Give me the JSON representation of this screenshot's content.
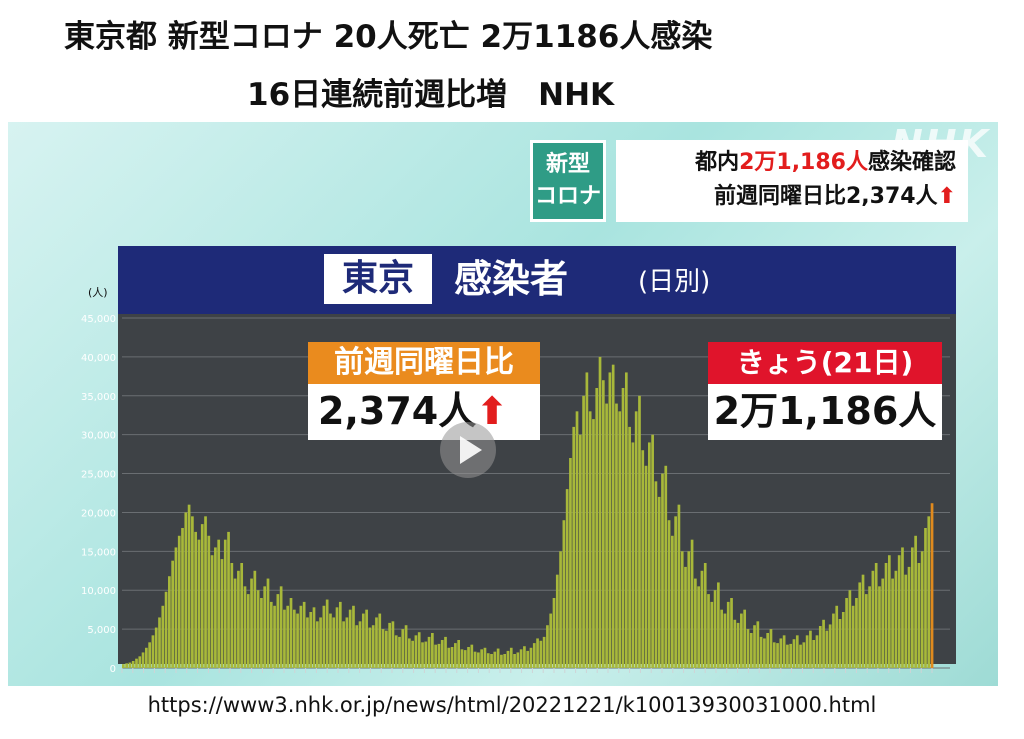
{
  "headline": {
    "line1": "東京都 新型コロナ 20人死亡 2万1186人感染",
    "line2": "16日連続前週比増　NHK"
  },
  "broadcast": {
    "watermark": "NHK",
    "tag_line1": "新型",
    "tag_line2": "コロナ",
    "summary_line1_prefix": "都内",
    "summary_line1_highlight": "2万1,186人",
    "summary_line1_suffix": "感染確認",
    "summary_line2": "前週同曜日比2,374人",
    "summary_arrow": "⬆",
    "title_box": "東京",
    "title_main": "感染者",
    "title_sub": "(日別)",
    "callout_left_header": "前週同曜日比",
    "callout_left_value": "2,374人",
    "callout_left_arrow": "⬆",
    "callout_right_header": "きょう(21日)",
    "callout_right_value": "2万1,186人"
  },
  "url": "https://www3.nhk.or.jp/news/html/20221221/k10013930031000.html",
  "chart_data": {
    "type": "bar",
    "title": "東京 感染者 (日別)",
    "ylabel": "(人)",
    "ylim": [
      0,
      45000
    ],
    "yticks": [
      "0",
      "5,000",
      "10,000",
      "15,000",
      "20,000",
      "25,000",
      "30,000",
      "35,000",
      "40,000",
      "45,000"
    ],
    "series_color": "#a8b83a",
    "highlight_color": "#e08a1e",
    "values": [
      500,
      600,
      700,
      900,
      1200,
      1500,
      2000,
      2600,
      3300,
      4200,
      5200,
      6500,
      8000,
      9800,
      11800,
      13800,
      15500,
      17000,
      18000,
      20000,
      21000,
      19500,
      17500,
      16500,
      18500,
      19500,
      17000,
      14500,
      15500,
      16500,
      14000,
      16500,
      17500,
      13500,
      11500,
      12500,
      13500,
      10500,
      9500,
      11500,
      12500,
      10000,
      9000,
      10500,
      11500,
      8500,
      8000,
      9500,
      10500,
      7500,
      8000,
      9000,
      7500,
      7000,
      8000,
      8500,
      6500,
      7200,
      7800,
      6000,
      6500,
      8000,
      8800,
      7000,
      6500,
      7800,
      8500,
      6000,
      6500,
      7500,
      8000,
      5500,
      6000,
      7000,
      7500,
      5200,
      5500,
      6500,
      7000,
      5000,
      4800,
      5800,
      6000,
      4200,
      4000,
      5000,
      5500,
      3800,
      3500,
      4200,
      4600,
      3300,
      3400,
      4000,
      4500,
      3000,
      3100,
      3600,
      4000,
      2600,
      2700,
      3200,
      3600,
      2400,
      2300,
      2700,
      3000,
      2100,
      2000,
      2400,
      2600,
      1900,
      1800,
      2100,
      2500,
      1700,
      1800,
      2200,
      2600,
      1800,
      2000,
      2400,
      2800,
      2200,
      2600,
      3200,
      3800,
      3500,
      4000,
      5500,
      7000,
      9000,
      12000,
      15000,
      19000,
      23000,
      27000,
      31000,
      33000,
      30000,
      35000,
      38000,
      33000,
      32000,
      36000,
      40000,
      37000,
      34000,
      38000,
      39000,
      34000,
      33000,
      36000,
      38000,
      31000,
      29000,
      33000,
      35000,
      28000,
      26000,
      29000,
      30000,
      24000,
      22000,
      25000,
      26000,
      19000,
      17000,
      19500,
      21000,
      15000,
      13000,
      15000,
      16500,
      11500,
      10500,
      12500,
      13500,
      9500,
      8500,
      10000,
      11000,
      7500,
      7000,
      8500,
      9000,
      6200,
      5800,
      7000,
      7500,
      5000,
      4500,
      5500,
      6000,
      4000,
      3800,
      4500,
      5000,
      3300,
      3200,
      3800,
      4200,
      3000,
      3100,
      3700,
      4200,
      3000,
      3300,
      4200,
      4800,
      3600,
      4200,
      5400,
      6200,
      4800,
      5600,
      7000,
      8000,
      6300,
      7200,
      9000,
      10000,
      8000,
      9000,
      11000,
      12000,
      9500,
      10500,
      12500,
      13500,
      10500,
      11500,
      13500,
      14500,
      11500,
      12500,
      14500,
      15500,
      12000,
      13000,
      15500,
      17000,
      13500,
      15000,
      18000,
      19500,
      21186
    ]
  }
}
